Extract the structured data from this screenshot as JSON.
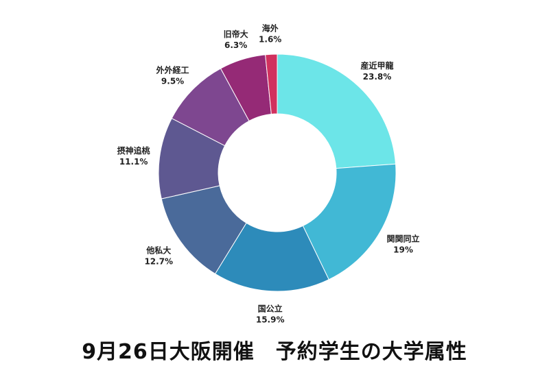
{
  "chart_data": {
    "type": "donut",
    "title": "9月26日大阪開催　予約学生の大学属性",
    "slices": [
      {
        "label": "産近甲龍",
        "value": 23.8,
        "value_label": "23.8%",
        "color": "#6ce5e8"
      },
      {
        "label": "関関同立",
        "value": 19.0,
        "value_label": "19%",
        "color": "#41b8d5"
      },
      {
        "label": "国公立",
        "value": 15.9,
        "value_label": "15.9%",
        "color": "#2d8bba"
      },
      {
        "label": "他私大",
        "value": 12.7,
        "value_label": "12.7%",
        "color": "#4a6a9a"
      },
      {
        "label": "摂神追桃",
        "value": 11.1,
        "value_label": "11.1%",
        "color": "#5e5891"
      },
      {
        "label": "外外経工",
        "value": 9.5,
        "value_label": "9.5%",
        "color": "#7e4790"
      },
      {
        "label": "旧帝大",
        "value": 6.3,
        "value_label": "6.3%",
        "color": "#952a76"
      },
      {
        "label": "海外",
        "value": 1.6,
        "value_label": "1.6%",
        "color": "#d1315e"
      }
    ]
  }
}
